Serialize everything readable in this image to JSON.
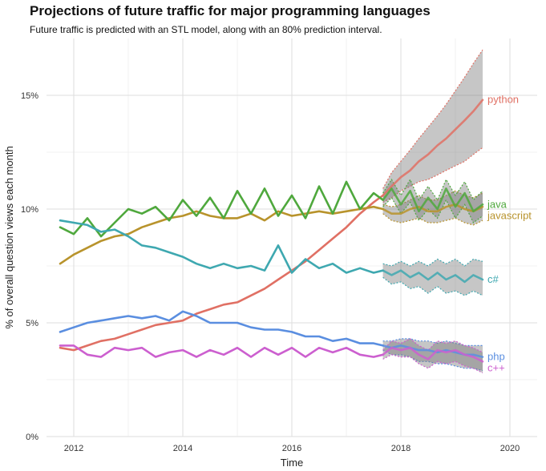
{
  "chart_data": {
    "type": "line",
    "title": "Projections of future traffic for major programming languages",
    "subtitle": "Future traffic is predicted with an STL model, along with an 80% prediction interval.",
    "xlabel": "Time",
    "ylabel": "% of overall question views each month",
    "xlim": [
      2011.5,
      2020.5
    ],
    "ylim": [
      0,
      17.5
    ],
    "x_ticks": [
      2012,
      2014,
      2016,
      2018,
      2020
    ],
    "x_tick_labels": [
      "2012",
      "2014",
      "2016",
      "2018",
      "2020"
    ],
    "y_ticks": [
      0,
      5,
      10,
      15
    ],
    "y_tick_labels": [
      "0%",
      "5%",
      "10%",
      "15%"
    ],
    "grid": true,
    "legend": "direct labels at right end of lines",
    "forecast_start": 2017.67,
    "interval": "80% prediction interval",
    "series": [
      {
        "name": "python",
        "color": "#e07064",
        "x": [
          2011.75,
          2012.0,
          2012.25,
          2012.5,
          2012.75,
          2013.0,
          2013.25,
          2013.5,
          2013.75,
          2014.0,
          2014.25,
          2014.5,
          2014.75,
          2015.0,
          2015.25,
          2015.5,
          2015.75,
          2016.0,
          2016.25,
          2016.5,
          2016.75,
          2017.0,
          2017.25,
          2017.5,
          2017.67
        ],
        "y": [
          3.9,
          3.8,
          4.0,
          4.2,
          4.3,
          4.5,
          4.7,
          4.9,
          5.0,
          5.1,
          5.4,
          5.6,
          5.8,
          5.9,
          6.2,
          6.5,
          6.9,
          7.3,
          7.7,
          8.2,
          8.7,
          9.2,
          9.8,
          10.3,
          10.6
        ],
        "forecast": {
          "x": [
            2017.67,
            2017.83,
            2018.0,
            2018.17,
            2018.33,
            2018.5,
            2018.67,
            2018.83,
            2019.0,
            2019.17,
            2019.33,
            2019.5
          ],
          "y": [
            10.6,
            11.0,
            11.4,
            11.7,
            12.1,
            12.4,
            12.8,
            13.1,
            13.5,
            13.9,
            14.3,
            14.8
          ],
          "lower": [
            10.3,
            10.5,
            10.8,
            11.0,
            11.2,
            11.3,
            11.5,
            11.7,
            11.9,
            12.1,
            12.4,
            12.7
          ],
          "upper": [
            10.9,
            11.6,
            12.1,
            12.6,
            13.1,
            13.6,
            14.1,
            14.6,
            15.2,
            15.8,
            16.4,
            17.0
          ]
        }
      },
      {
        "name": "javascript",
        "color": "#b8932c",
        "x": [
          2011.75,
          2012.0,
          2012.25,
          2012.5,
          2012.75,
          2013.0,
          2013.25,
          2013.5,
          2013.75,
          2014.0,
          2014.25,
          2014.5,
          2014.75,
          2015.0,
          2015.25,
          2015.5,
          2015.75,
          2016.0,
          2016.25,
          2016.5,
          2016.75,
          2017.0,
          2017.25,
          2017.5,
          2017.67
        ],
        "y": [
          7.6,
          8.0,
          8.3,
          8.6,
          8.8,
          8.9,
          9.2,
          9.4,
          9.6,
          9.7,
          9.9,
          9.7,
          9.6,
          9.6,
          9.8,
          9.5,
          9.9,
          9.7,
          9.8,
          9.9,
          9.8,
          9.9,
          10.0,
          10.1,
          10.0
        ],
        "forecast": {
          "x": [
            2017.67,
            2017.83,
            2018.0,
            2018.17,
            2018.33,
            2018.5,
            2018.67,
            2018.83,
            2019.0,
            2019.17,
            2019.33,
            2019.5
          ],
          "y": [
            10.0,
            9.8,
            9.8,
            10.0,
            10.1,
            9.9,
            9.9,
            10.1,
            10.2,
            10.0,
            9.9,
            10.1
          ],
          "lower": [
            9.8,
            9.5,
            9.4,
            9.5,
            9.6,
            9.4,
            9.4,
            9.5,
            9.6,
            9.4,
            9.3,
            9.5
          ],
          "upper": [
            10.2,
            10.1,
            10.2,
            10.4,
            10.6,
            10.4,
            10.4,
            10.6,
            10.8,
            10.6,
            10.5,
            10.7
          ]
        }
      },
      {
        "name": "java",
        "color": "#4fa83d",
        "x": [
          2011.75,
          2012.0,
          2012.25,
          2012.5,
          2012.75,
          2013.0,
          2013.25,
          2013.5,
          2013.75,
          2014.0,
          2014.25,
          2014.5,
          2014.75,
          2015.0,
          2015.25,
          2015.5,
          2015.75,
          2016.0,
          2016.25,
          2016.5,
          2016.75,
          2017.0,
          2017.25,
          2017.5,
          2017.67
        ],
        "y": [
          9.2,
          8.9,
          9.6,
          8.8,
          9.4,
          10.0,
          9.8,
          10.1,
          9.5,
          10.4,
          9.7,
          10.5,
          9.6,
          10.8,
          9.8,
          10.9,
          9.7,
          10.6,
          9.6,
          11.0,
          9.8,
          11.2,
          10.0,
          10.7,
          10.4
        ],
        "forecast": {
          "x": [
            2017.67,
            2017.83,
            2018.0,
            2018.17,
            2018.33,
            2018.5,
            2018.67,
            2018.83,
            2019.0,
            2019.17,
            2019.33,
            2019.5
          ],
          "y": [
            10.4,
            10.9,
            10.2,
            10.8,
            9.9,
            10.5,
            10.0,
            10.9,
            10.1,
            10.7,
            9.9,
            10.2
          ],
          "lower": [
            10.1,
            10.5,
            9.8,
            10.3,
            9.5,
            10.0,
            9.6,
            10.4,
            9.6,
            10.2,
            9.4,
            9.7
          ],
          "upper": [
            10.7,
            11.3,
            10.6,
            11.3,
            10.4,
            11.0,
            10.4,
            11.3,
            10.6,
            11.2,
            10.4,
            10.8
          ]
        }
      },
      {
        "name": "c#",
        "color": "#3ea8b0",
        "x": [
          2011.75,
          2012.0,
          2012.25,
          2012.5,
          2012.75,
          2013.0,
          2013.25,
          2013.5,
          2013.75,
          2014.0,
          2014.25,
          2014.5,
          2014.75,
          2015.0,
          2015.25,
          2015.5,
          2015.75,
          2016.0,
          2016.25,
          2016.5,
          2016.75,
          2017.0,
          2017.25,
          2017.5,
          2017.67
        ],
        "y": [
          9.5,
          9.4,
          9.3,
          9.0,
          9.1,
          8.8,
          8.4,
          8.3,
          8.1,
          7.9,
          7.6,
          7.4,
          7.6,
          7.4,
          7.5,
          7.3,
          8.4,
          7.2,
          7.8,
          7.4,
          7.6,
          7.2,
          7.4,
          7.2,
          7.3
        ],
        "forecast": {
          "x": [
            2017.67,
            2017.83,
            2018.0,
            2018.17,
            2018.33,
            2018.5,
            2018.67,
            2018.83,
            2019.0,
            2019.17,
            2019.33,
            2019.5
          ],
          "y": [
            7.3,
            7.1,
            7.3,
            7.0,
            7.2,
            6.9,
            7.2,
            6.9,
            7.1,
            6.8,
            7.1,
            6.9
          ],
          "lower": [
            7.0,
            6.7,
            6.8,
            6.5,
            6.6,
            6.3,
            6.6,
            6.3,
            6.4,
            6.2,
            6.4,
            6.2
          ],
          "upper": [
            7.6,
            7.5,
            7.7,
            7.5,
            7.7,
            7.5,
            7.8,
            7.6,
            7.8,
            7.5,
            7.8,
            7.7
          ]
        }
      },
      {
        "name": "php",
        "color": "#5a8ee0",
        "x": [
          2011.75,
          2012.0,
          2012.25,
          2012.5,
          2012.75,
          2013.0,
          2013.25,
          2013.5,
          2013.75,
          2014.0,
          2014.25,
          2014.5,
          2014.75,
          2015.0,
          2015.25,
          2015.5,
          2015.75,
          2016.0,
          2016.25,
          2016.5,
          2016.75,
          2017.0,
          2017.25,
          2017.5,
          2017.67
        ],
        "y": [
          4.6,
          4.8,
          5.0,
          5.1,
          5.2,
          5.3,
          5.2,
          5.3,
          5.1,
          5.5,
          5.3,
          5.0,
          5.0,
          5.0,
          4.8,
          4.7,
          4.7,
          4.6,
          4.4,
          4.4,
          4.2,
          4.3,
          4.1,
          4.1,
          4.0
        ],
        "forecast": {
          "x": [
            2017.67,
            2017.83,
            2018.0,
            2018.17,
            2018.33,
            2018.5,
            2018.67,
            2018.83,
            2019.0,
            2019.17,
            2019.33,
            2019.5
          ],
          "y": [
            4.0,
            3.9,
            4.0,
            3.9,
            3.8,
            3.8,
            3.7,
            3.8,
            3.7,
            3.6,
            3.6,
            3.5
          ],
          "lower": [
            3.8,
            3.6,
            3.6,
            3.5,
            3.3,
            3.3,
            3.2,
            3.2,
            3.1,
            3.0,
            3.0,
            2.9
          ],
          "upper": [
            4.2,
            4.2,
            4.3,
            4.3,
            4.2,
            4.2,
            4.1,
            4.2,
            4.1,
            4.0,
            4.0,
            4.0
          ]
        }
      },
      {
        "name": "c++",
        "color": "#cc5fcf",
        "x": [
          2011.75,
          2012.0,
          2012.25,
          2012.5,
          2012.75,
          2013.0,
          2013.25,
          2013.5,
          2013.75,
          2014.0,
          2014.25,
          2014.5,
          2014.75,
          2015.0,
          2015.25,
          2015.5,
          2015.75,
          2016.0,
          2016.25,
          2016.5,
          2016.75,
          2017.0,
          2017.25,
          2017.5,
          2017.67
        ],
        "y": [
          4.0,
          4.0,
          3.6,
          3.5,
          3.9,
          3.8,
          3.9,
          3.5,
          3.7,
          3.8,
          3.5,
          3.8,
          3.6,
          3.9,
          3.5,
          3.9,
          3.6,
          3.9,
          3.5,
          3.9,
          3.7,
          3.9,
          3.6,
          3.5,
          3.6
        ],
        "forecast": {
          "x": [
            2017.67,
            2017.83,
            2018.0,
            2018.17,
            2018.33,
            2018.5,
            2018.67,
            2018.83,
            2019.0,
            2019.17,
            2019.33,
            2019.5
          ],
          "y": [
            3.6,
            3.9,
            3.8,
            3.9,
            3.6,
            3.4,
            3.8,
            3.7,
            3.8,
            3.6,
            3.5,
            3.3
          ],
          "lower": [
            3.4,
            3.6,
            3.5,
            3.5,
            3.2,
            3.0,
            3.3,
            3.2,
            3.3,
            3.1,
            3.0,
            2.8
          ],
          "upper": [
            3.8,
            4.2,
            4.1,
            4.3,
            4.0,
            3.8,
            4.2,
            4.1,
            4.2,
            4.0,
            3.9,
            3.7
          ]
        }
      }
    ]
  }
}
